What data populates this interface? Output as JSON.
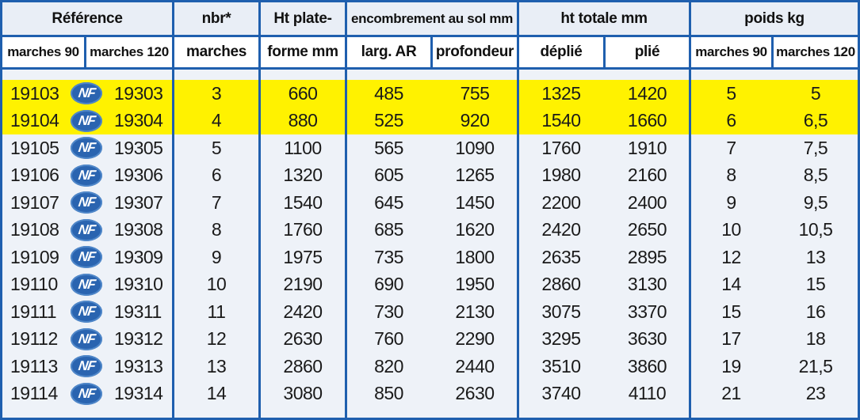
{
  "header": {
    "reference": "Référence",
    "nbr_line1": "nbr*",
    "nbr_line2": "marches",
    "ht_line1": "Ht plate-",
    "ht_line2": "forme mm",
    "encombrement": "encombrement au sol mm",
    "ht_totale": "ht totale mm",
    "poids": "poids kg",
    "marches90": "marches 90",
    "marches120": "marches 120",
    "larg_ar": "larg. AR",
    "profondeur": "profondeur",
    "deplie": "déplié",
    "plie": "plié",
    "poids90": "marches 90",
    "poids120": "marches 120"
  },
  "nf_logo_text": "NF",
  "colors": {
    "border": "#1f5fae",
    "highlight": "#fff200",
    "nf_logo": "#2a64b0"
  },
  "rows": [
    {
      "ref90": "19103",
      "ref120": "19303",
      "nbr": "3",
      "ht": "660",
      "larg": "485",
      "prof": "755",
      "deplie": "1325",
      "plie": "1420",
      "p90": "5",
      "p120": "5",
      "highlight": true
    },
    {
      "ref90": "19104",
      "ref120": "19304",
      "nbr": "4",
      "ht": "880",
      "larg": "525",
      "prof": "920",
      "deplie": "1540",
      "plie": "1660",
      "p90": "6",
      "p120": "6,5",
      "highlight": true
    },
    {
      "ref90": "19105",
      "ref120": "19305",
      "nbr": "5",
      "ht": "1100",
      "larg": "565",
      "prof": "1090",
      "deplie": "1760",
      "plie": "1910",
      "p90": "7",
      "p120": "7,5"
    },
    {
      "ref90": "19106",
      "ref120": "19306",
      "nbr": "6",
      "ht": "1320",
      "larg": "605",
      "prof": "1265",
      "deplie": "1980",
      "plie": "2160",
      "p90": "8",
      "p120": "8,5"
    },
    {
      "ref90": "19107",
      "ref120": "19307",
      "nbr": "7",
      "ht": "1540",
      "larg": "645",
      "prof": "1450",
      "deplie": "2200",
      "plie": "2400",
      "p90": "9",
      "p120": "9,5"
    },
    {
      "ref90": "19108",
      "ref120": "19308",
      "nbr": "8",
      "ht": "1760",
      "larg": "685",
      "prof": "1620",
      "deplie": "2420",
      "plie": "2650",
      "p90": "10",
      "p120": "10,5"
    },
    {
      "ref90": "19109",
      "ref120": "19309",
      "nbr": "9",
      "ht": "1975",
      "larg": "735",
      "prof": "1800",
      "deplie": "2635",
      "plie": "2895",
      "p90": "12",
      "p120": "13"
    },
    {
      "ref90": "19110",
      "ref120": "19310",
      "nbr": "10",
      "ht": "2190",
      "larg": "690",
      "prof": "1950",
      "deplie": "2860",
      "plie": "3130",
      "p90": "14",
      "p120": "15"
    },
    {
      "ref90": "19111",
      "ref120": "19311",
      "nbr": "11",
      "ht": "2420",
      "larg": "730",
      "prof": "2130",
      "deplie": "3075",
      "plie": "3370",
      "p90": "15",
      "p120": "16"
    },
    {
      "ref90": "19112",
      "ref120": "19312",
      "nbr": "12",
      "ht": "2630",
      "larg": "760",
      "prof": "2290",
      "deplie": "3295",
      "plie": "3630",
      "p90": "17",
      "p120": "18"
    },
    {
      "ref90": "19113",
      "ref120": "19313",
      "nbr": "13",
      "ht": "2860",
      "larg": "820",
      "prof": "2440",
      "deplie": "3510",
      "plie": "3860",
      "p90": "19",
      "p120": "21,5"
    },
    {
      "ref90": "19114",
      "ref120": "19314",
      "nbr": "14",
      "ht": "3080",
      "larg": "850",
      "prof": "2630",
      "deplie": "3740",
      "plie": "4110",
      "p90": "21",
      "p120": "23"
    }
  ]
}
